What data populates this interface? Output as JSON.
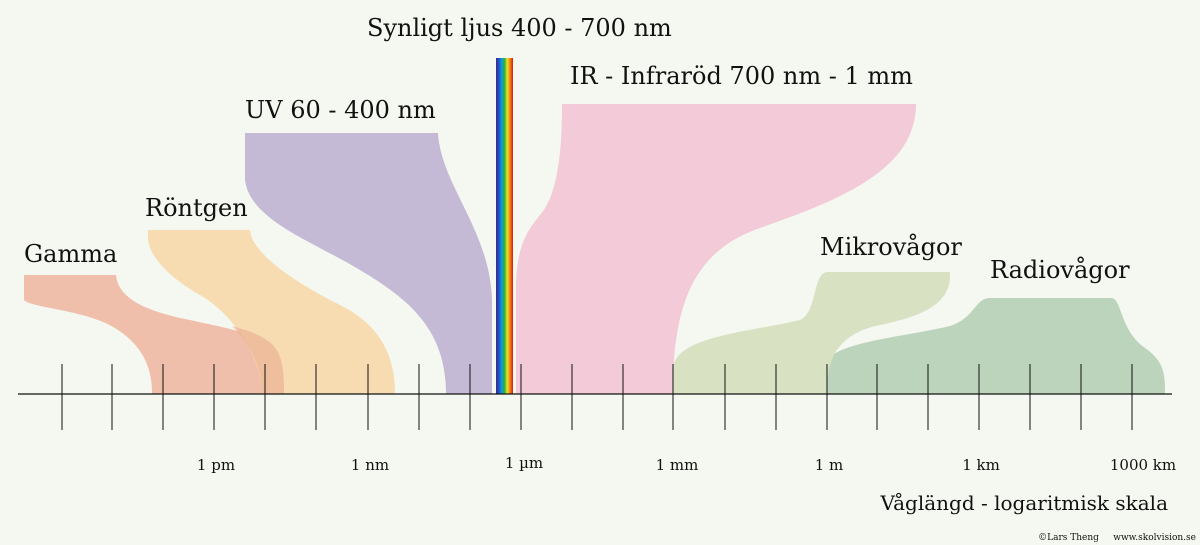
{
  "bands": {
    "gamma": {
      "label": "Gamma",
      "color": "#efbfab"
    },
    "rontgen": {
      "label": "Röntgen",
      "color": "#f7dcb2"
    },
    "uv": {
      "label": "UV 60 - 400 nm",
      "color": "#c5bad6"
    },
    "visible": {
      "label": "Synligt ljus 400 - 700 nm"
    },
    "ir": {
      "label": "IR - Infraröd 700 nm - 1 mm",
      "color": "#f2cad8"
    },
    "micro": {
      "label": "Mikrovågor",
      "color": "#d8e2c2"
    },
    "radio": {
      "label": "Radiovågor",
      "color": "#bcd4bc"
    }
  },
  "axis": {
    "tick_labels": [
      "1 pm",
      "1 nm",
      "1 µm",
      "1 mm",
      "1 m",
      "1 km",
      "1000 km"
    ],
    "title": "Våglängd - logaritmisk skala"
  },
  "credit": "©Lars Theng     www.skolvision.se"
}
